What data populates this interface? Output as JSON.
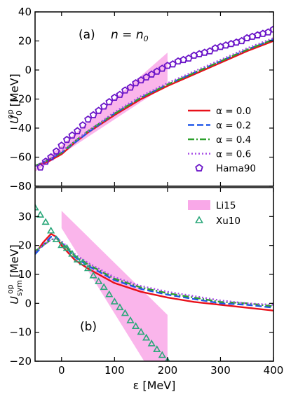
{
  "chart_data": [
    {
      "type": "line",
      "panel_label": "(a)",
      "annotation": "n = n",
      "annotation_sub": "0",
      "ylabel": "U",
      "ylabel_sub": "0",
      "ylabel_sup": "op",
      "ylabel_unit": "[MeV]",
      "xlim": [
        -50,
        400
      ],
      "ylim": [
        -80,
        40
      ],
      "yticks": [
        -80,
        -60,
        -40,
        -20,
        0,
        20,
        40
      ],
      "legend_position": "lower-right",
      "band": {
        "color": "#f9a8e8",
        "lower": [
          [
            -50,
            -70
          ],
          [
            200,
            -10
          ]
        ],
        "upper": [
          [
            -50,
            -68
          ],
          [
            200,
            12
          ]
        ]
      },
      "series": [
        {
          "name": "α = 0.0",
          "color": "#e8101a",
          "dash": "none",
          "x": [
            -50,
            -25,
            0,
            25,
            50,
            100,
            150,
            200,
            250,
            300,
            350,
            400
          ],
          "y": [
            -66,
            -63,
            -58,
            -50,
            -43,
            -31,
            -20,
            -11,
            -3,
            5,
            13,
            20
          ]
        },
        {
          "name": "α = 0.2",
          "color": "#1f56e8",
          "dash": "9,4",
          "x": [
            -50,
            -25,
            0,
            25,
            50,
            100,
            150,
            200,
            250,
            300,
            350,
            400
          ],
          "y": [
            -66,
            -62,
            -57,
            -50,
            -43,
            -30,
            -19,
            -10,
            -2,
            6,
            14,
            21
          ]
        },
        {
          "name": "α = 0.4",
          "color": "#2ca02c",
          "dash": "9,3,2,3",
          "x": [
            -50,
            -25,
            0,
            25,
            50,
            100,
            150,
            200,
            250,
            300,
            350,
            400
          ],
          "y": [
            -66,
            -62,
            -57,
            -49,
            -42,
            -30,
            -19,
            -10,
            -2,
            6,
            14,
            21
          ]
        },
        {
          "name": "α = 0.6",
          "color": "#a64ce6",
          "dash": "2,3",
          "x": [
            -50,
            -25,
            0,
            25,
            50,
            100,
            150,
            200,
            250,
            300,
            350,
            400
          ],
          "y": [
            -66,
            -62,
            -56,
            -49,
            -42,
            -29,
            -18,
            -9,
            -1,
            7,
            15,
            22
          ]
        },
        {
          "name": "Hama90",
          "marker": "pentagon",
          "color": "#6a14c8",
          "x": [
            -40,
            -30,
            -20,
            -10,
            0,
            10,
            20,
            30,
            40,
            50,
            60,
            70,
            80,
            90,
            100,
            110,
            120,
            130,
            140,
            150,
            160,
            170,
            180,
            190,
            200,
            210,
            220,
            230,
            240,
            250,
            260,
            270,
            280,
            290,
            300,
            310,
            320,
            330,
            340,
            350,
            360,
            370,
            380,
            390,
            400
          ],
          "y": [
            -67,
            -63,
            -60,
            -56,
            -52,
            -48,
            -45,
            -42,
            -38,
            -34,
            -31,
            -28,
            -25,
            -22,
            -19,
            -17,
            -14,
            -12,
            -9,
            -7,
            -5,
            -3,
            -1,
            1,
            3,
            4,
            6,
            7,
            8,
            10,
            11,
            12,
            13,
            15,
            16,
            17,
            18,
            19,
            20,
            22,
            23,
            24,
            25,
            26,
            28
          ]
        }
      ]
    },
    {
      "type": "line",
      "panel_label": "(b)",
      "xlabel": "ε [MeV]",
      "ylabel": "U",
      "ylabel_sub": "sym",
      "ylabel_sup": "op",
      "ylabel_unit": "[MeV]",
      "xlim": [
        -50,
        400
      ],
      "ylim": [
        -20,
        40
      ],
      "yticks": [
        -20,
        -10,
        0,
        10,
        20,
        30
      ],
      "xticks": [
        0,
        100,
        200,
        300,
        400
      ],
      "legend_position": "upper-right",
      "band": {
        "name": "Li15",
        "color": "#f9a8e8",
        "lower": [
          [
            0,
            26
          ],
          [
            200,
            -33
          ]
        ],
        "upper": [
          [
            0,
            32
          ],
          [
            200,
            -4
          ]
        ]
      },
      "series": [
        {
          "name": "α = 0.0",
          "color": "#e8101a",
          "dash": "none",
          "x": [
            -50,
            -35,
            -20,
            -10,
            0,
            25,
            50,
            100,
            150,
            200,
            250,
            300,
            350,
            400
          ],
          "y": [
            17,
            21,
            24,
            23,
            20,
            15,
            12,
            7,
            4,
            2,
            0.5,
            -0.5,
            -1.5,
            -2.5
          ]
        },
        {
          "name": "α = 0.2",
          "color": "#1f56e8",
          "dash": "9,4",
          "x": [
            -50,
            -35,
            -20,
            -10,
            0,
            25,
            50,
            100,
            150,
            200,
            250,
            300,
            350,
            400
          ],
          "y": [
            17,
            20,
            23,
            23,
            21,
            16,
            13,
            8,
            5,
            3,
            1.5,
            0,
            -0.5,
            -1.5
          ]
        },
        {
          "name": "α = 0.4",
          "color": "#2ca02c",
          "dash": "9,3,2,3",
          "x": [
            -50,
            -35,
            -20,
            -10,
            0,
            25,
            50,
            100,
            150,
            200,
            250,
            300,
            350,
            400
          ],
          "y": [
            18,
            20,
            22,
            22.5,
            21,
            16.5,
            13.5,
            8.5,
            5.5,
            3.5,
            2,
            0.5,
            0,
            -1
          ]
        },
        {
          "name": "α = 0.6",
          "color": "#a64ce6",
          "dash": "2,3",
          "x": [
            -50,
            -35,
            -20,
            -10,
            0,
            25,
            50,
            100,
            150,
            200,
            250,
            300,
            350,
            400
          ],
          "y": [
            18,
            20,
            22,
            22.5,
            21.5,
            17,
            14,
            9,
            6,
            4,
            2.5,
            1,
            0,
            -0.5
          ]
        },
        {
          "name": "Xu10",
          "marker": "triangle",
          "color": "#2aa77a",
          "x": [
            -50,
            -40,
            -30,
            -20,
            -10,
            0,
            10,
            20,
            30,
            40,
            50,
            60,
            70,
            80,
            90,
            100,
            110,
            120,
            130,
            140,
            150,
            160,
            170,
            180,
            190,
            200
          ],
          "y": [
            33,
            30.5,
            28,
            25,
            22,
            20,
            19,
            17,
            15,
            14,
            12,
            9.5,
            7.5,
            5.5,
            3,
            0.5,
            -1.5,
            -3.5,
            -6,
            -8,
            -10,
            -12,
            -14,
            -16,
            -18,
            -20
          ]
        }
      ]
    }
  ]
}
